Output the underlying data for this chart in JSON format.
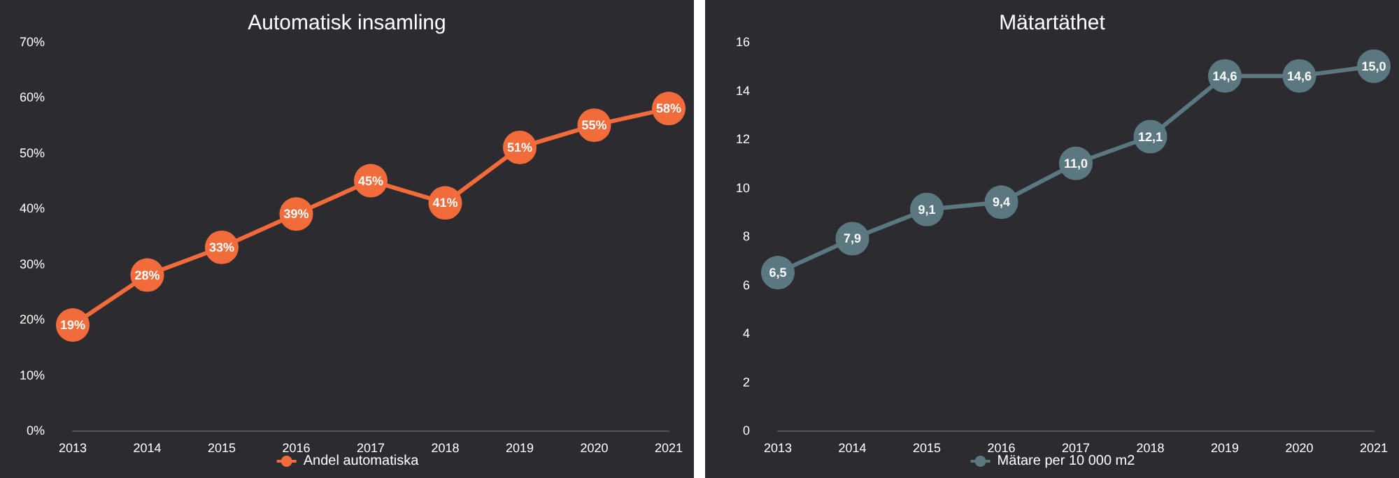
{
  "chart_data": [
    {
      "type": "line",
      "title": "Automatisk insamling",
      "categories": [
        "2013",
        "2014",
        "2015",
        "2016",
        "2017",
        "2018",
        "2019",
        "2020",
        "2021"
      ],
      "series": [
        {
          "name": "Andel automatiska",
          "color": "#f26b3a",
          "values": [
            19,
            28,
            33,
            39,
            45,
            41,
            51,
            55,
            58
          ],
          "value_labels": [
            "19%",
            "28%",
            "33%",
            "39%",
            "45%",
            "41%",
            "51%",
            "55%",
            "58%"
          ]
        }
      ],
      "ylim": [
        0,
        70
      ],
      "yticks": [
        {
          "value": 0,
          "label": "0%"
        },
        {
          "value": 10,
          "label": "10%"
        },
        {
          "value": 20,
          "label": "20%"
        },
        {
          "value": 30,
          "label": "30%"
        },
        {
          "value": 40,
          "label": "40%"
        },
        {
          "value": 50,
          "label": "50%"
        },
        {
          "value": 60,
          "label": "60%"
        },
        {
          "value": 70,
          "label": "70%"
        }
      ],
      "grid": false,
      "legend": "bottom",
      "marker": "circle",
      "line_style": "solid"
    },
    {
      "type": "line",
      "title": "Mätartäthet",
      "categories": [
        "2013",
        "2014",
        "2015",
        "2016",
        "2017",
        "2018",
        "2019",
        "2020",
        "2021"
      ],
      "series": [
        {
          "name": "Mätare per 10 000 m2",
          "color": "#5b7780",
          "values": [
            6.5,
            7.9,
            9.1,
            9.4,
            11.0,
            12.1,
            14.6,
            14.6,
            15.0
          ],
          "value_labels": [
            "6,5",
            "7,9",
            "9,1",
            "9,4",
            "11,0",
            "12,1",
            "14,6",
            "14,6",
            "15,0"
          ]
        }
      ],
      "ylim": [
        0,
        16
      ],
      "yticks": [
        0,
        2,
        4,
        6,
        8,
        10,
        12,
        14,
        16
      ],
      "grid": false,
      "legend": "bottom",
      "marker": "circle",
      "line_style": "solid"
    }
  ]
}
